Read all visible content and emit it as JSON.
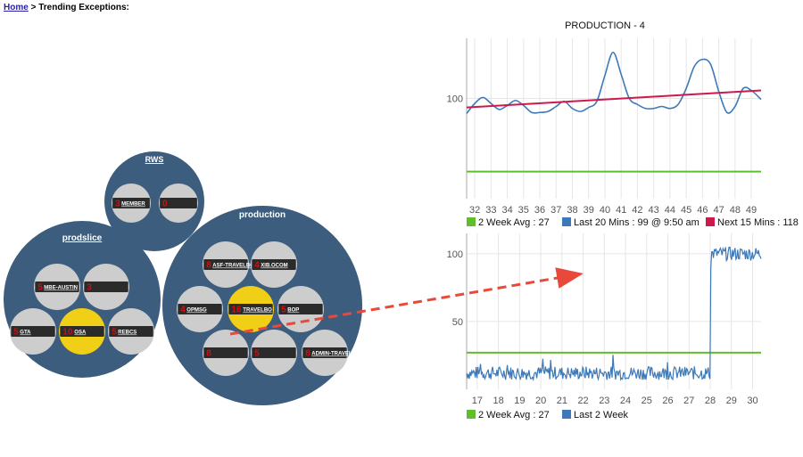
{
  "breadcrumb": {
    "home": "Home",
    "separator": " > ",
    "current": "Trending Exceptions:"
  },
  "bubble_map": {
    "clusters": [
      {
        "name": "RWS",
        "items": [
          {
            "count": "3",
            "label": "MEMBER",
            "highlight": false
          },
          {
            "count": "0",
            "label": "",
            "highlight": false
          }
        ]
      },
      {
        "name": "prodslice",
        "items": [
          {
            "count": "5",
            "label": "MBE-AUSTIN",
            "highlight": false
          },
          {
            "count": "3",
            "label": "",
            "highlight": false
          },
          {
            "count": "5",
            "label": "GTA",
            "highlight": false
          },
          {
            "count": "10",
            "label": "OSA",
            "highlight": true
          },
          {
            "count": "5",
            "label": "REBCS",
            "highlight": false
          }
        ]
      },
      {
        "name": "production",
        "items": [
          {
            "count": "8",
            "label": "ASF-TRAVELBOBT",
            "highlight": false
          },
          {
            "count": "4",
            "label": "XIB.OCOM",
            "highlight": false
          },
          {
            "count": "4",
            "label": "OPMSG",
            "highlight": false
          },
          {
            "count": "16",
            "label": "TRAVELBO",
            "highlight": true
          },
          {
            "count": "5",
            "label": "BOP",
            "highlight": false
          },
          {
            "count": "8",
            "label": "",
            "highlight": false
          },
          {
            "count": "5",
            "label": "",
            "highlight": false
          },
          {
            "count": "8",
            "label": "ADMIN-TRAVELBOBT",
            "highlight": false
          }
        ]
      }
    ]
  },
  "colors": {
    "cluster_fill": "#3c5d7e",
    "bubble_fill": "#cdcdcd",
    "highlight_fill": "#f1cf16",
    "label_box": "#2b2b2b",
    "series_blue": "#3d79b8",
    "series_red": "#cc1a4d",
    "series_green": "#5fbf2a",
    "arrow": "#e8493a"
  },
  "chart_data": [
    {
      "type": "line",
      "title": "PRODUCTION - 4",
      "x_ticks": [
        "32",
        "33",
        "34",
        "35",
        "36",
        "37",
        "38",
        "39",
        "40",
        "41",
        "42",
        "43",
        "44",
        "45",
        "46",
        "47",
        "48",
        "49"
      ],
      "ylim": [
        0,
        160
      ],
      "y_ticks": [
        100
      ],
      "grid": true,
      "legend_position": "bottom",
      "series": [
        {
          "name": "2 Week Avg : 27",
          "color": "#5fbf2a",
          "x": [
            31.5,
            49.6
          ],
          "y": [
            27,
            27
          ]
        },
        {
          "name": "Last 20 Mins : 99 @ 9:50 am",
          "color": "#3d79b8",
          "x": [
            31.5,
            32,
            32.5,
            33,
            33.5,
            34,
            34.5,
            35,
            35.5,
            36,
            36.5,
            37,
            37.5,
            38,
            38.5,
            39,
            39.5,
            40,
            40.5,
            41,
            41.5,
            42,
            42.5,
            43,
            43.5,
            44,
            44.5,
            45,
            45.5,
            46,
            46.5,
            47,
            47.5,
            48,
            48.5,
            49,
            49.6
          ],
          "y": [
            85,
            95,
            101,
            95,
            89,
            93,
            98,
            93,
            86,
            86,
            87,
            92,
            97,
            90,
            87,
            91,
            97,
            123,
            146,
            124,
            100,
            94,
            90,
            90,
            92,
            90,
            94,
            110,
            132,
            139,
            134,
            107,
            86,
            92,
            110,
            108,
            99
          ]
        },
        {
          "name": "Next 15 Mins : 118",
          "color": "#cc1a4d",
          "x": [
            31.5,
            49.6
          ],
          "y": [
            91,
            108
          ]
        }
      ]
    },
    {
      "type": "line",
      "title": "",
      "x_ticks": [
        "17",
        "18",
        "19",
        "20",
        "21",
        "22",
        "23",
        "24",
        "25",
        "26",
        "27",
        "28",
        "29",
        "30"
      ],
      "ylim": [
        0,
        115
      ],
      "y_ticks": [
        50,
        100
      ],
      "grid": true,
      "legend_position": "bottom",
      "series": [
        {
          "name": "2 Week Avg : 27",
          "color": "#5fbf2a",
          "x": [
            16.5,
            30.4
          ],
          "y": [
            27,
            27
          ]
        },
        {
          "name": "Last 2 Week",
          "color": "#3d79b8",
          "baseline": 12,
          "noise": 5,
          "jump_at": 28.0,
          "high_level": 100,
          "x": [
            16.5,
            30.4
          ]
        }
      ]
    }
  ]
}
